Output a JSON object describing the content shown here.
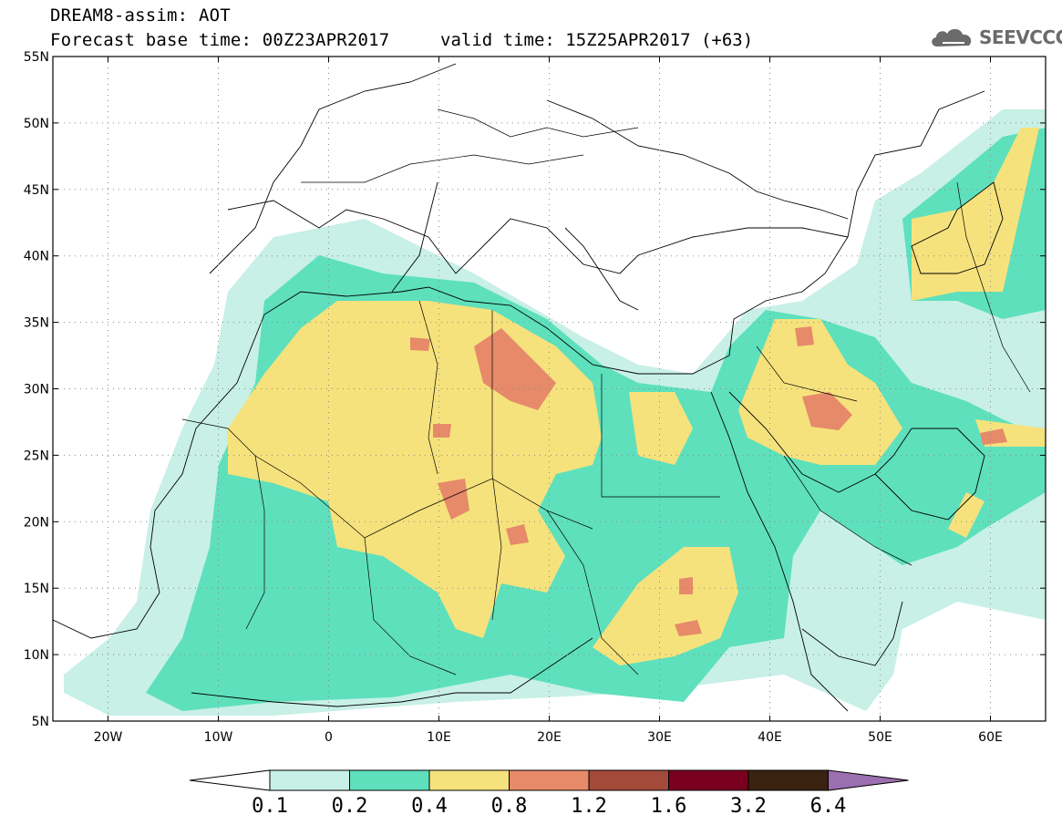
{
  "title": "DREAM8-assim: AOT",
  "base_time": "Forecast base time: 00Z23APR2017",
  "valid_time": "valid time: 15Z25APR2017 (+63)",
  "logo": {
    "text": "SEEVCCC",
    "icon": "cloud-logo-icon"
  },
  "axes": {
    "lat_ticks": [
      "55N",
      "50N",
      "45N",
      "40N",
      "35N",
      "30N",
      "25N",
      "20N",
      "15N",
      "10N",
      "5N"
    ],
    "lon_ticks": [
      "20W",
      "10W",
      "0",
      "10E",
      "20E",
      "30E",
      "40E",
      "50E",
      "60E"
    ]
  },
  "colorbar": {
    "labels": [
      "0.1",
      "0.2",
      "0.4",
      "0.8",
      "1.2",
      "1.6",
      "3.2",
      "6.4"
    ],
    "colors": [
      "#ffffff",
      "#c8f0e6",
      "#5ee0bd",
      "#f6e27c",
      "#e68a6a",
      "#a44a3a",
      "#7a0020",
      "#3a2210",
      "#9b6fb0"
    ]
  },
  "palette": {
    "land_line": "#000000",
    "grid": "#8a8a8a"
  }
}
